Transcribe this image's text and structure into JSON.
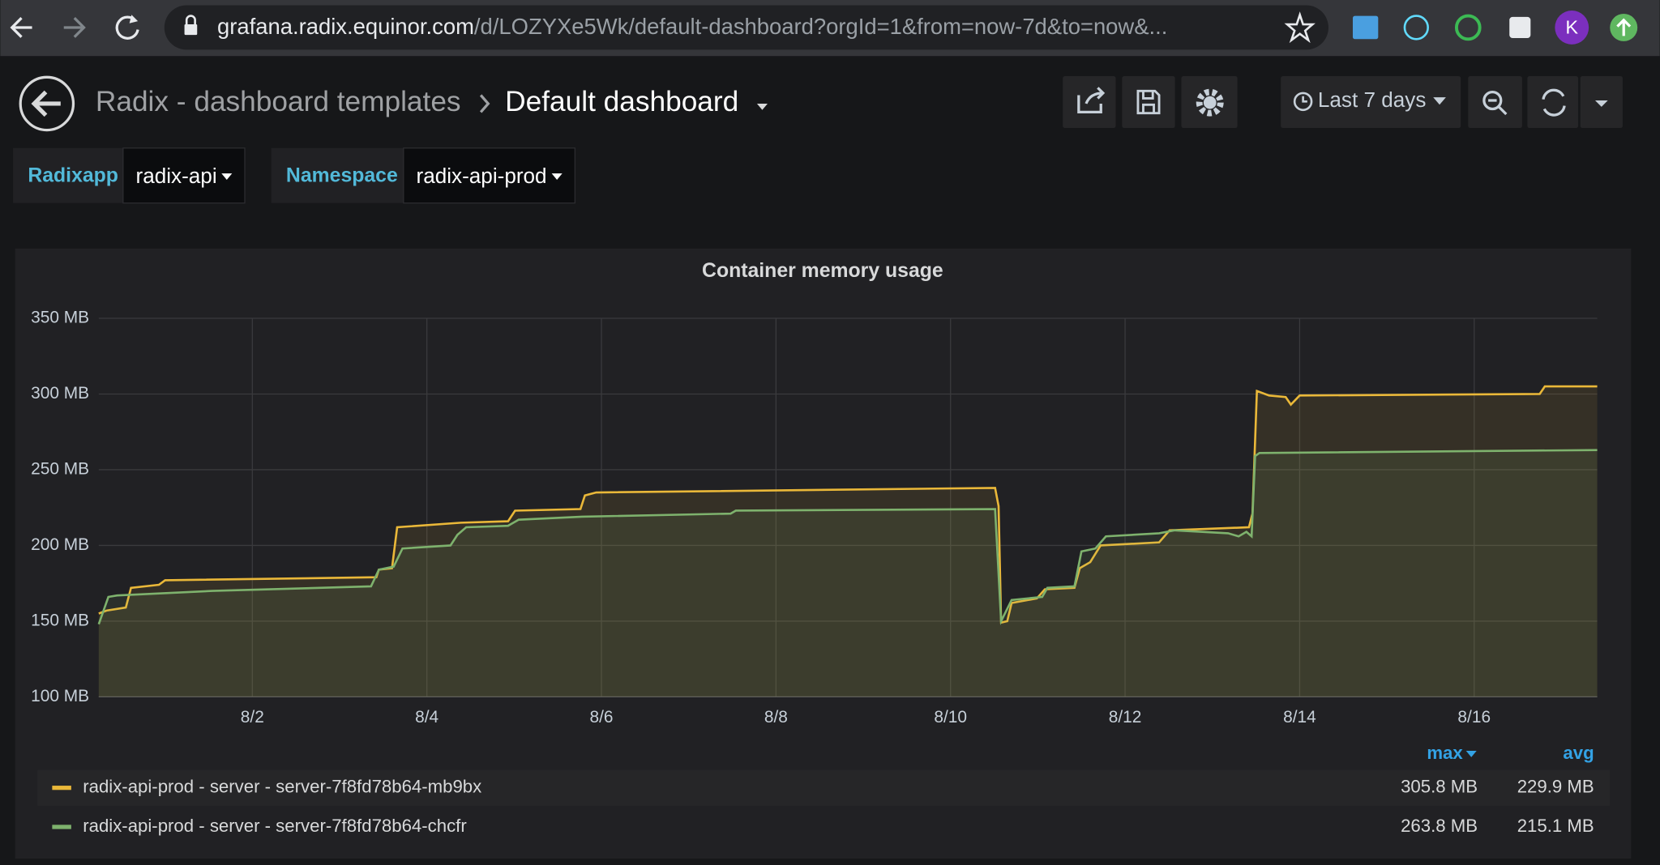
{
  "browser": {
    "url_host": "grafana.radix.equinor.com",
    "url_path": "/d/LOZYXe5Wk/default-dashboard?orgId=1&from=now-7d&to=now&...",
    "profile_initial": "K"
  },
  "header": {
    "folder": "Radix - dashboard templates",
    "dashboard": "Default dashboard",
    "time_range": "Last 7 days"
  },
  "variables": [
    {
      "label": "Radixapp",
      "value": "radix-api"
    },
    {
      "label": "Namespace",
      "value": "radix-api-prod"
    }
  ],
  "chart_data": {
    "type": "line",
    "title": "Container memory usage",
    "xlim": [
      0.24,
      17.41
    ],
    "xticks": [
      {
        "value": 2,
        "label": "8/2"
      },
      {
        "value": 4,
        "label": "8/4"
      },
      {
        "value": 6,
        "label": "8/6"
      },
      {
        "value": 8,
        "label": "8/8"
      },
      {
        "value": 10,
        "label": "8/10"
      },
      {
        "value": 12,
        "label": "8/12"
      },
      {
        "value": 14,
        "label": "8/14"
      },
      {
        "value": 16,
        "label": "8/16"
      }
    ],
    "ylim": [
      100,
      350
    ],
    "yticks": [
      {
        "value": 100,
        "label": "100 MB"
      },
      {
        "value": 150,
        "label": "150 MB"
      },
      {
        "value": 200,
        "label": "200 MB"
      },
      {
        "value": 250,
        "label": "250 MB"
      },
      {
        "value": 300,
        "label": "300 MB"
      },
      {
        "value": 350,
        "label": "350 MB"
      }
    ],
    "grid": true,
    "series": [
      {
        "name": "radix-api-prod - server - server-7f8fd78b64-mb9bx",
        "color": "#eab839",
        "x": [
          0.24,
          0.33,
          0.55,
          0.61,
          0.93,
          1.0,
          3.42,
          3.45,
          3.6,
          3.66,
          4.39,
          4.93,
          5.01,
          5.76,
          5.81,
          5.94,
          10.51,
          10.55,
          10.58,
          10.65,
          10.7,
          10.99,
          11.08,
          11.42,
          11.48,
          11.6,
          11.72,
          12.39,
          12.51,
          13.42,
          13.46,
          13.51,
          13.65,
          13.84,
          13.9,
          14.0,
          16.75,
          16.81,
          17.41
        ],
        "values": [
          155,
          157,
          159,
          172,
          174,
          177,
          179,
          184,
          185,
          212,
          215,
          216,
          223,
          224,
          233,
          235,
          238,
          226,
          149,
          150,
          162,
          165,
          171,
          172,
          185,
          189,
          200,
          202,
          210,
          212,
          221,
          302,
          299,
          298,
          293,
          299,
          300,
          305,
          305
        ]
      },
      {
        "name": "radix-api-prod - server - server-7f8fd78b64-chcfr",
        "color": "#7eb26d",
        "x": [
          0.24,
          0.35,
          0.45,
          1.54,
          3.36,
          3.45,
          3.62,
          3.72,
          4.27,
          4.35,
          4.45,
          4.93,
          5.05,
          5.78,
          7.48,
          7.54,
          10.51,
          10.58,
          10.7,
          11.05,
          11.11,
          11.42,
          11.5,
          11.66,
          11.78,
          12.39,
          12.57,
          13.18,
          13.3,
          13.39,
          13.45,
          13.49,
          13.54,
          17.41
        ],
        "values": [
          148,
          166,
          167,
          170,
          173,
          184,
          186,
          198,
          200,
          207,
          212,
          213,
          217,
          219,
          221,
          223,
          224,
          150,
          164,
          166,
          172,
          173,
          196,
          198,
          206,
          208,
          210,
          208,
          206,
          209,
          206,
          259,
          261,
          263
        ]
      }
    ]
  },
  "legend_table": {
    "columns": [
      "max",
      "avg"
    ],
    "rows": [
      [
        "305.8 MB",
        "229.9 MB"
      ],
      [
        "263.8 MB",
        "215.1 MB"
      ]
    ]
  }
}
